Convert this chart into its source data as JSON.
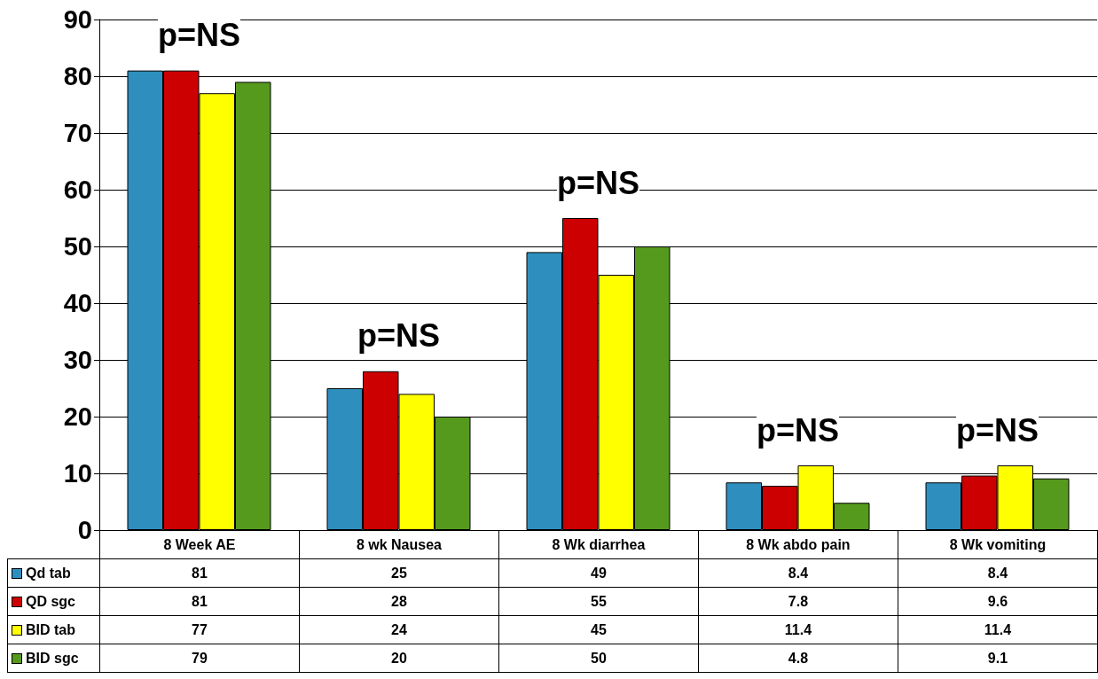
{
  "chart_data": {
    "type": "bar",
    "categories": [
      "8 Week AE",
      "8 wk Nausea",
      "8 Wk diarrhea",
      "8 Wk abdo pain",
      "8 Wk vomiting"
    ],
    "series": [
      {
        "name": "Qd tab",
        "color": "#2e8fbf",
        "values": [
          81,
          25,
          49,
          8.4,
          8.4
        ]
      },
      {
        "name": "QD sgc",
        "color": "#cc0000",
        "values": [
          81,
          28,
          55,
          7.8,
          9.6
        ]
      },
      {
        "name": "BID tab",
        "color": "#ffff00",
        "values": [
          77,
          24,
          45,
          11.4,
          11.4
        ]
      },
      {
        "name": "BID sgc",
        "color": "#559a1d",
        "values": [
          79,
          20,
          50,
          4.8,
          9.1
        ]
      }
    ],
    "ylim": [
      0,
      90
    ],
    "yticks": [
      0,
      10,
      20,
      30,
      40,
      50,
      60,
      70,
      80,
      90
    ],
    "grid": "y",
    "legend": "bottom left",
    "data_labels": true,
    "annotations": [
      "p=NS",
      "p=NS",
      "p=NS",
      "p=NS",
      "p=NS"
    ]
  }
}
